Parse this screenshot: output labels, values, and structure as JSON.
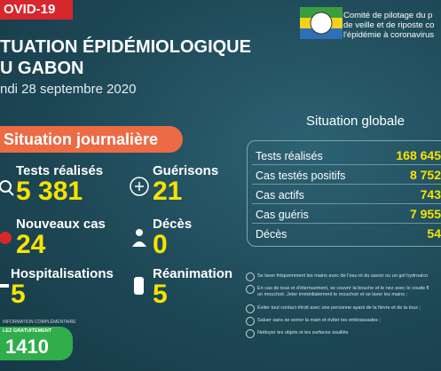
{
  "header": {
    "badge": "OVID-19",
    "title_line1": "TUATION ÉPIDÉMIOLOGIQUE",
    "title_line2": "U GABON",
    "date": "ndi 28 septembre 2020",
    "committee": [
      "Comité de pilotage du p",
      "de veille et de riposte co",
      "l'épidémie à coronavirus"
    ]
  },
  "daily": {
    "heading": "Situation journalière",
    "items": [
      {
        "label": "Tests réalisés",
        "value": "5 381"
      },
      {
        "label": "Guérisons",
        "value": "21"
      },
      {
        "label": "Nouveaux cas",
        "value": "24"
      },
      {
        "label": "Décès",
        "value": "0"
      },
      {
        "label": "Hospitalisations",
        "value": "5"
      },
      {
        "label": "Réanimation",
        "value": "5"
      }
    ]
  },
  "hotline": {
    "note": "INFORMATION COMPLÉMENTAIRE",
    "call": "LEZ GRATUITEMENT",
    "number": "1410"
  },
  "global": {
    "heading": "Situation globale",
    "rows": [
      [
        "Tests réalisés",
        "168 645"
      ],
      [
        "Cas testés positifs",
        "8 752"
      ],
      [
        "Cas actifs",
        "743"
      ],
      [
        "Cas guéris",
        "7 955"
      ],
      [
        "Décès",
        "54"
      ]
    ]
  },
  "advice": [
    "Se laver fréquemment les mains avec de l'eau et du savon ou un gel hydroalco",
    "En cas de toux et d'éternuement, se couvrir la bouche et le nez avec le coude fl",
    "un mouchoir. Jeter immédiatement le mouchoir et se laver les mains ;",
    "Éviter tout contact étroit avec une personne ayant de la fièvre et de la toux ;",
    "Saluer sans se serrer la main et éviter les embrassades ;",
    "Nettoyer les objets et les surfaces souillés"
  ]
}
